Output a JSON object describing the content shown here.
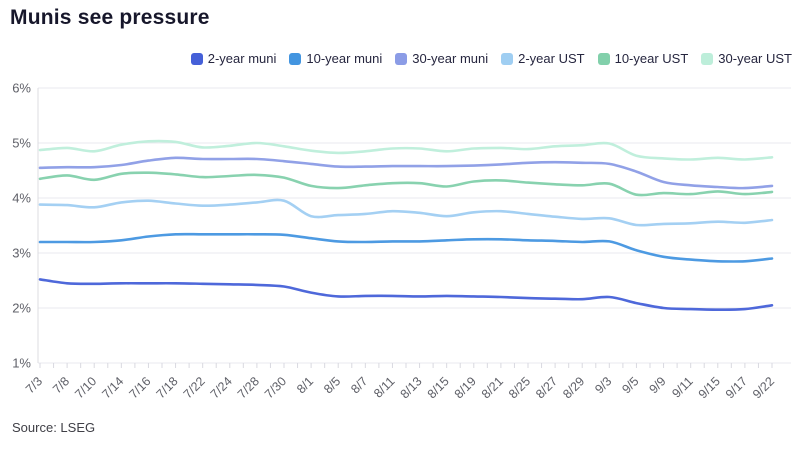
{
  "title": "Munis see pressure",
  "source": "Source: LSEG",
  "legend": {
    "position": "top-right"
  },
  "colors": {
    "grid": "#e9e9ef",
    "axis": "#dcdce2",
    "tick": "#d9d9e0",
    "axis_text": "#5f6068",
    "title_text": "#17172b",
    "legend_text": "#26263f"
  },
  "chart_data": {
    "type": "line",
    "title": "Munis see pressure",
    "xlabel": "",
    "ylabel": "",
    "ylim": [
      1,
      6
    ],
    "grid": "horizontal",
    "legend_position": "top-right",
    "y_ticks": [
      {
        "value": 6,
        "label": "6%"
      },
      {
        "value": 5,
        "label": "5%"
      },
      {
        "value": 4,
        "label": "4%"
      },
      {
        "value": 3,
        "label": "3%"
      },
      {
        "value": 2,
        "label": "2%"
      },
      {
        "value": 1,
        "label": "1%"
      }
    ],
    "x_labels": [
      "7/3",
      "7/8",
      "7/10",
      "7/14",
      "7/16",
      "7/18",
      "7/22",
      "7/24",
      "7/28",
      "7/30",
      "8/1",
      "8/5",
      "8/7",
      "8/11",
      "8/13",
      "8/15",
      "8/19",
      "8/21",
      "8/25",
      "8/27",
      "8/29",
      "9/3",
      "9/5",
      "9/9",
      "9/11",
      "9/15",
      "9/17",
      "9/22"
    ],
    "series": [
      {
        "name": "2-year muni",
        "color": "#4560d8",
        "values": [
          2.52,
          2.45,
          2.44,
          2.45,
          2.45,
          2.45,
          2.44,
          2.43,
          2.42,
          2.39,
          2.28,
          2.21,
          2.22,
          2.22,
          2.21,
          2.22,
          2.21,
          2.2,
          2.18,
          2.17,
          2.16,
          2.2,
          2.09,
          2.0,
          1.98,
          1.97,
          1.98,
          2.05
        ]
      },
      {
        "name": "10-year muni",
        "color": "#4395e0",
        "values": [
          3.2,
          3.2,
          3.2,
          3.23,
          3.3,
          3.34,
          3.34,
          3.34,
          3.34,
          3.33,
          3.27,
          3.21,
          3.2,
          3.21,
          3.21,
          3.23,
          3.25,
          3.25,
          3.23,
          3.22,
          3.2,
          3.21,
          3.05,
          2.93,
          2.88,
          2.85,
          2.85,
          2.9
        ]
      },
      {
        "name": "30-year muni",
        "color": "#8b9ce6",
        "values": [
          4.55,
          4.56,
          4.56,
          4.6,
          4.68,
          4.73,
          4.71,
          4.71,
          4.71,
          4.67,
          4.62,
          4.57,
          4.57,
          4.58,
          4.58,
          4.58,
          4.59,
          4.61,
          4.64,
          4.65,
          4.64,
          4.62,
          4.48,
          4.29,
          4.23,
          4.2,
          4.18,
          4.22
        ]
      },
      {
        "name": "2-year UST",
        "color": "#9fcef2",
        "values": [
          3.88,
          3.87,
          3.83,
          3.92,
          3.95,
          3.9,
          3.86,
          3.88,
          3.92,
          3.95,
          3.67,
          3.69,
          3.71,
          3.76,
          3.73,
          3.67,
          3.74,
          3.76,
          3.71,
          3.66,
          3.62,
          3.63,
          3.51,
          3.53,
          3.54,
          3.57,
          3.55,
          3.6
        ]
      },
      {
        "name": "10-year UST",
        "color": "#82d0ab",
        "values": [
          4.35,
          4.41,
          4.33,
          4.44,
          4.46,
          4.43,
          4.38,
          4.4,
          4.42,
          4.37,
          4.22,
          4.18,
          4.23,
          4.27,
          4.27,
          4.21,
          4.3,
          4.32,
          4.28,
          4.25,
          4.23,
          4.26,
          4.06,
          4.09,
          4.07,
          4.12,
          4.07,
          4.11
        ]
      },
      {
        "name": "30-year UST",
        "color": "#bdeeda",
        "values": [
          4.87,
          4.91,
          4.85,
          4.97,
          5.03,
          5.02,
          4.92,
          4.95,
          5.0,
          4.94,
          4.86,
          4.82,
          4.85,
          4.9,
          4.9,
          4.85,
          4.9,
          4.91,
          4.89,
          4.94,
          4.96,
          4.99,
          4.77,
          4.72,
          4.7,
          4.73,
          4.7,
          4.74
        ]
      }
    ]
  }
}
